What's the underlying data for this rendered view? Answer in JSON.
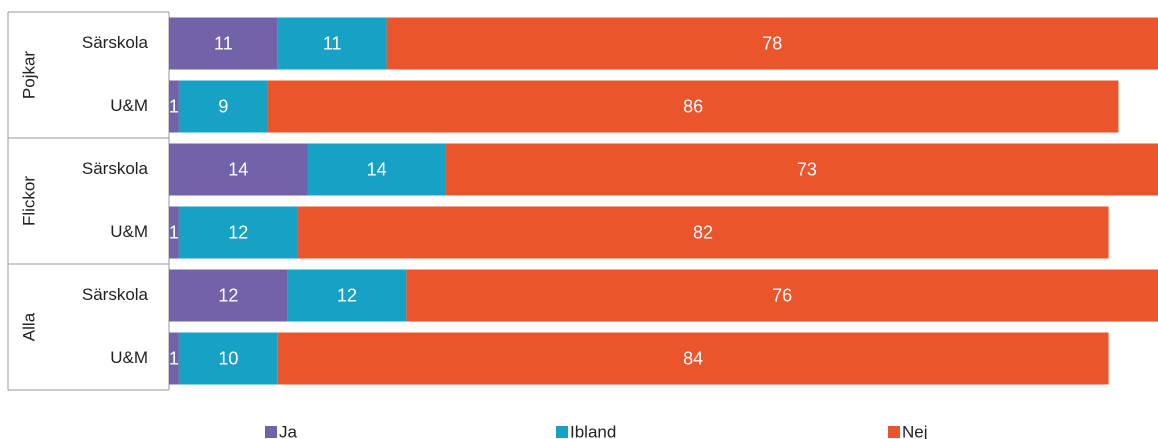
{
  "chart_data": {
    "type": "stacked-bar-horizontal",
    "groups": [
      "Pojkar",
      "Flickor",
      "Alla"
    ],
    "categories": [
      "Särskola",
      "U&M",
      "Särskola",
      "U&M",
      "Särskola",
      "U&M"
    ],
    "series": [
      {
        "name": "Ja",
        "color": "#7262aa",
        "values": [
          11,
          1,
          14,
          1,
          12,
          1
        ]
      },
      {
        "name": "Ibland",
        "color": "#17a1c5",
        "values": [
          11,
          9,
          14,
          12,
          12,
          10
        ]
      },
      {
        "name": "Nej",
        "color": "#ea552b",
        "values": [
          78,
          86,
          73,
          82,
          76,
          84
        ]
      }
    ],
    "xlim": [
      0,
      100
    ]
  }
}
